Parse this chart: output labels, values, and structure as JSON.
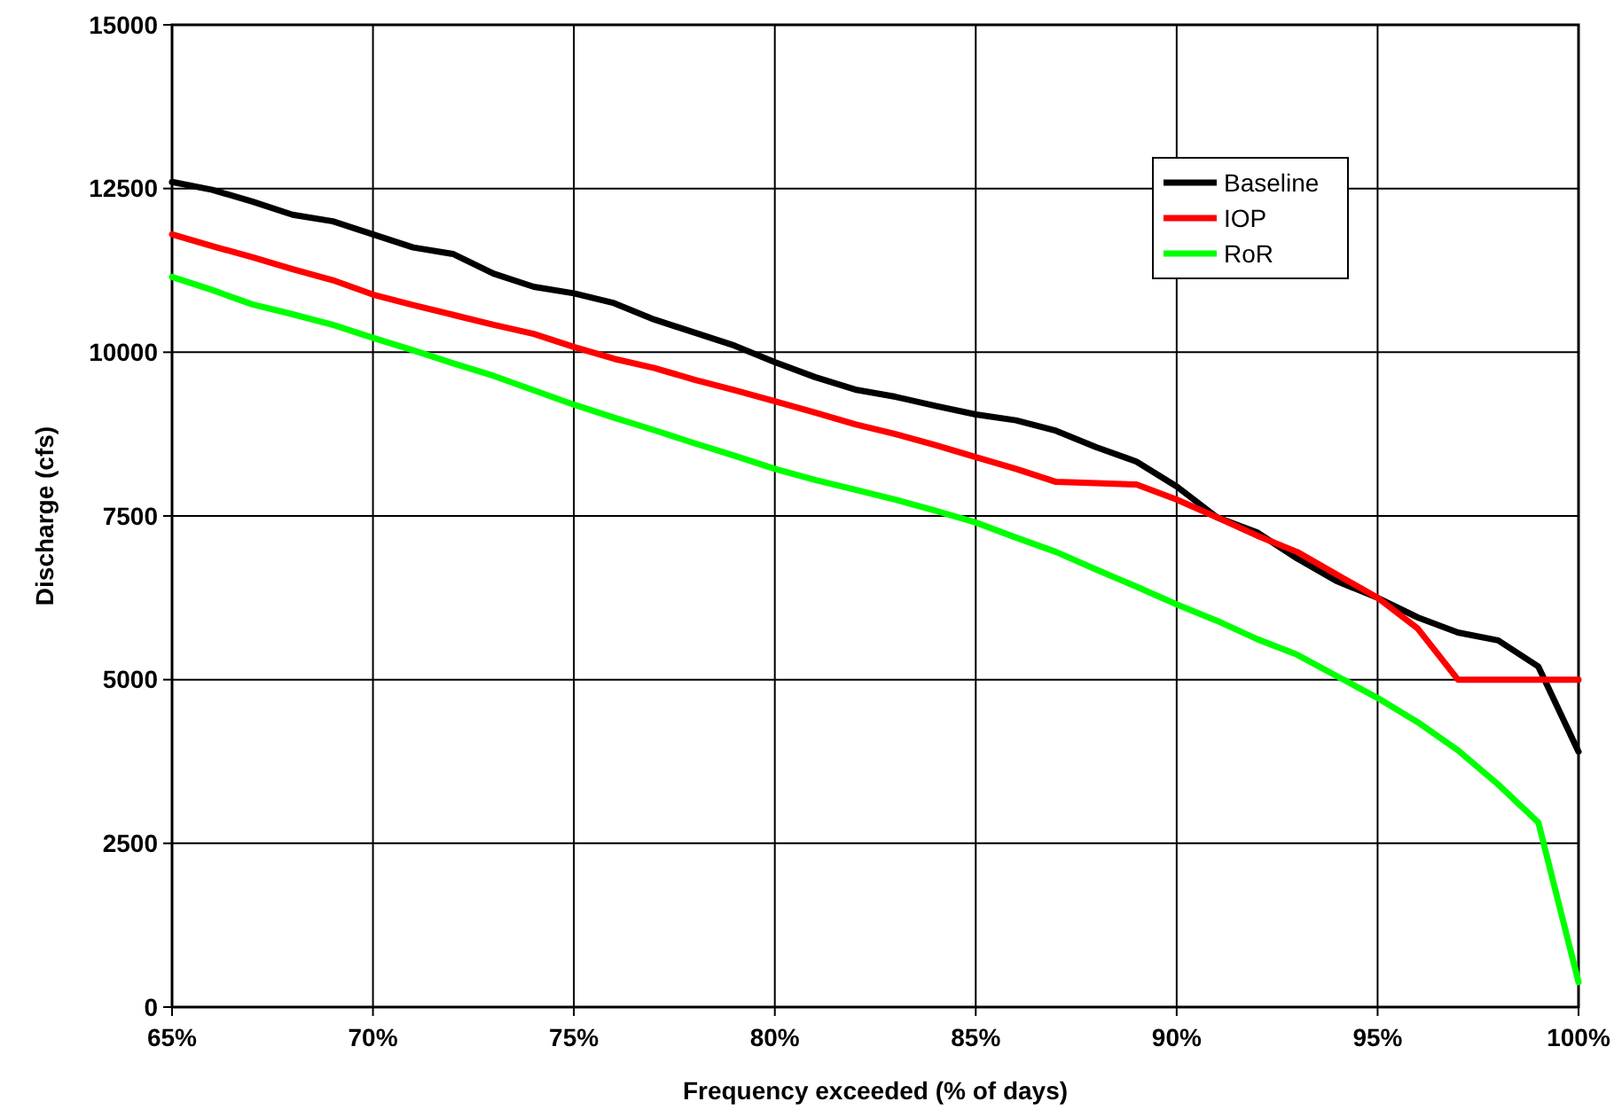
{
  "chart_data": {
    "type": "line",
    "xlabel": "Frequency exceeded (% of days)",
    "ylabel": "Discharge (cfs)",
    "x": [
      65,
      66,
      67,
      68,
      69,
      70,
      71,
      72,
      73,
      74,
      75,
      76,
      77,
      78,
      79,
      80,
      81,
      82,
      83,
      84,
      85,
      86,
      87,
      88,
      89,
      90,
      91,
      92,
      93,
      94,
      95,
      96,
      97,
      98,
      99,
      100
    ],
    "series": [
      {
        "name": "Baseline",
        "color": "#000000",
        "values": [
          12600,
          12480,
          12300,
          12100,
          12000,
          11800,
          11600,
          11500,
          11200,
          11000,
          10900,
          10750,
          10500,
          10300,
          10100,
          9850,
          9620,
          9430,
          9320,
          9180,
          9050,
          8960,
          8800,
          8550,
          8330,
          7950,
          7480,
          7250,
          6850,
          6500,
          6250,
          5950,
          5720,
          5600,
          5200,
          3900
        ]
      },
      {
        "name": "IOP",
        "color": "#ff0000",
        "values": [
          11800,
          11620,
          11450,
          11270,
          11100,
          10880,
          10720,
          10570,
          10420,
          10280,
          10080,
          9900,
          9760,
          9580,
          9420,
          9250,
          9080,
          8900,
          8750,
          8580,
          8400,
          8220,
          8020,
          8000,
          7980,
          7750,
          7480,
          7200,
          6950,
          6600,
          6250,
          5780,
          5000,
          5000,
          5000,
          5000
        ]
      },
      {
        "name": "RoR",
        "color": "#00ff00",
        "values": [
          11150,
          10950,
          10730,
          10580,
          10420,
          10220,
          10030,
          9830,
          9640,
          9420,
          9200,
          9000,
          8810,
          8610,
          8420,
          8220,
          8050,
          7900,
          7750,
          7580,
          7400,
          7170,
          6950,
          6680,
          6420,
          6150,
          5900,
          5620,
          5380,
          5050,
          4720,
          4350,
          3920,
          3400,
          2820,
          380
        ]
      }
    ],
    "xlim": [
      65,
      100
    ],
    "xticks": [
      {
        "value": 65,
        "label": "65%"
      },
      {
        "value": 70,
        "label": "70%"
      },
      {
        "value": 75,
        "label": "75%"
      },
      {
        "value": 80,
        "label": "80%"
      },
      {
        "value": 85,
        "label": "85%"
      },
      {
        "value": 90,
        "label": "90%"
      },
      {
        "value": 95,
        "label": "95%"
      },
      {
        "value": 100,
        "label": "100%"
      }
    ],
    "ylim": [
      0,
      15000
    ],
    "yticks": [
      0,
      2500,
      5000,
      7500,
      10000,
      12500,
      15000
    ],
    "grid": true,
    "legend": "top right",
    "marker": "none",
    "line_style": "solid"
  }
}
